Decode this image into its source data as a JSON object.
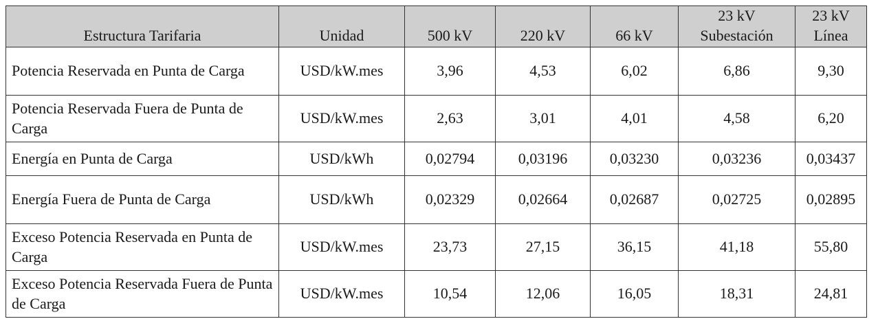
{
  "table": {
    "header": [
      "Estructura Tarifaria",
      "Unidad",
      "500 kV",
      "220 kV",
      "66 kV",
      "23 kV\nSubestación",
      "23 kV\nLínea"
    ],
    "rows": [
      [
        "Potencia Reservada en Punta de Carga",
        "USD/kW.mes",
        "3,96",
        "4,53",
        "6,02",
        "6,86",
        "9,30"
      ],
      [
        "Potencia Reservada Fuera de Punta de Carga",
        "USD/kW.mes",
        "2,63",
        "3,01",
        "4,01",
        "4,58",
        "6,20"
      ],
      [
        "Energía en Punta de Carga",
        "USD/kWh",
        "0,02794",
        "0,03196",
        "0,03230",
        "0,03236",
        "0,03437"
      ],
      [
        "Energía Fuera de Punta de Carga",
        "USD/kWh",
        "0,02329",
        "0,02664",
        "0,02687",
        "0,02725",
        "0,02895"
      ],
      [
        "Exceso Potencia Reservada en Punta de Carga",
        "USD/kW.mes",
        "23,73",
        "27,15",
        "36,15",
        "41,18",
        "55,80"
      ],
      [
        "Exceso Potencia Reservada Fuera de Punta de Carga",
        "USD/kW.mes",
        "10,54",
        "12,06",
        "16,05",
        "18,31",
        "24,81"
      ]
    ]
  }
}
